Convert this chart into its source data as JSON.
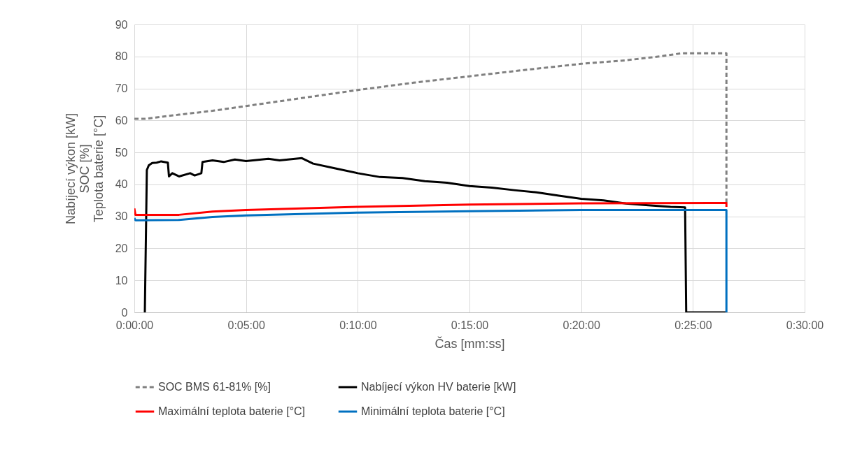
{
  "chart_data": {
    "type": "line",
    "xlabel": "Čas [mm:ss]",
    "ylabel": "Nabíjecí výkon [kW]\nSOC [%]\nTeplota baterie [°C]",
    "xlim": [
      0,
      30
    ],
    "xticks": [
      {
        "value": 0,
        "label": "0:00:00"
      },
      {
        "value": 5,
        "label": "0:05:00"
      },
      {
        "value": 10,
        "label": "0:10:00"
      },
      {
        "value": 15,
        "label": "0:15:00"
      },
      {
        "value": 20,
        "label": "0:20:00"
      },
      {
        "value": 25,
        "label": "0:25:00"
      },
      {
        "value": 30,
        "label": "0:30:00"
      }
    ],
    "ylim": [
      0,
      90
    ],
    "yticks": [
      0,
      10,
      20,
      30,
      40,
      50,
      60,
      70,
      80,
      90
    ],
    "grid": true,
    "legend": "bottom",
    "marker": "none",
    "line_style": "solid",
    "series": [
      {
        "name": "SOC BMS 61-81% [%]",
        "color": "#808080",
        "line_style": "dashed",
        "x": [
          0,
          0.5,
          2,
          3.5,
          5,
          7.5,
          10,
          12.5,
          15,
          17.5,
          20,
          22,
          23.5,
          24.5,
          26.5,
          26.5
        ],
        "values": [
          60.5,
          60.5,
          61.8,
          63,
          64.5,
          67,
          69.5,
          71.8,
          73.8,
          75.8,
          77.7,
          78.8,
          80,
          81,
          81,
          34
        ]
      },
      {
        "name": "Nabíjecí výkon HV baterie [kW]",
        "color": "#000000",
        "x": [
          0.47,
          0.56,
          0.65,
          0.8,
          1.0,
          1.2,
          1.5,
          1.55,
          1.7,
          2.0,
          2.5,
          2.7,
          3.0,
          3.05,
          3.5,
          4.0,
          4.5,
          5.0,
          6.0,
          6.5,
          7.5,
          8.0,
          9.0,
          10.0,
          11.0,
          12.0,
          13.0,
          14.0,
          15.0,
          16.0,
          17.0,
          18.0,
          19.0,
          20.0,
          21.0,
          22.0,
          23.0,
          24.0,
          24.65,
          24.7,
          26.5
        ],
        "values": [
          0,
          44.5,
          46,
          46.7,
          46.8,
          47.2,
          46.8,
          42.5,
          43.5,
          42.5,
          43.5,
          42.8,
          43.5,
          47,
          47.5,
          47,
          47.8,
          47.3,
          48,
          47.5,
          48.2,
          46.5,
          45,
          43.5,
          42.3,
          42,
          41,
          40.5,
          39.5,
          39,
          38.2,
          37.5,
          36.5,
          35.5,
          35,
          34,
          33.5,
          33,
          32.8,
          0,
          0
        ]
      },
      {
        "name": "Maximální teplota baterie [°C]",
        "color": "#ff0000",
        "x": [
          0,
          0.05,
          2,
          3.5,
          5,
          10,
          15,
          20,
          26.5,
          26.5
        ],
        "values": [
          32.5,
          30.5,
          30.5,
          31.5,
          32,
          33,
          33.7,
          34.1,
          34.2,
          33
        ]
      },
      {
        "name": "Minimální teplota baterie [°C]",
        "color": "#0070c0",
        "x": [
          0,
          0.05,
          2,
          3.5,
          5,
          10,
          15,
          20,
          26.5,
          26.5
        ],
        "values": [
          29.5,
          28.8,
          28.9,
          29.8,
          30.3,
          31.2,
          31.6,
          32,
          32,
          0
        ]
      }
    ]
  }
}
